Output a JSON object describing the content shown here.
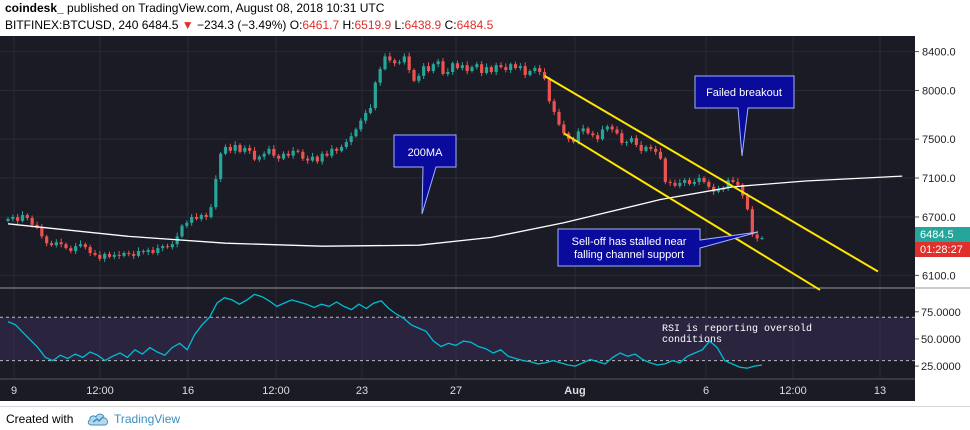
{
  "header": {
    "brand": "coindesk_",
    "published": "published on TradingView.com, August 08, 2018 10:31 UTC",
    "symbol": "BITFINEX:BTCUSD, 240",
    "last": "6484.5",
    "arrow": "▼",
    "change": "−234.3 (−3.49%)",
    "o_label": "O:",
    "o_value": "6461.7",
    "h_label": "H:",
    "h_value": "6519.9",
    "l_label": "L:",
    "l_value": "6438.9",
    "c_label": "C:",
    "c_value": "6484.5"
  },
  "footer": {
    "created_with": "Created with",
    "tradingview": "TradingView",
    "logo_icon": "tradingview-cloud-icon"
  },
  "colors": {
    "up": "#26a69a",
    "down": "#ef5350",
    "ma": "#ffffff",
    "channel": "#ffe500",
    "rsi": "#00bcd4",
    "callout": "#0a0a9c",
    "background": "#1a1b24"
  },
  "chart_data": [
    {
      "type": "candlestick",
      "title": "",
      "y_axis": {
        "ticks": [
          8400,
          8000,
          7500,
          7100,
          6700,
          6100
        ],
        "labels": [
          "8400.0",
          "8000.0",
          "7500.0",
          "7100.0",
          "6700.0",
          "6100.0"
        ],
        "range": [
          5970,
          8560
        ]
      },
      "x_axis": {
        "labels": [
          "9",
          "12:00",
          "16",
          "12:00",
          "23",
          "27",
          "Aug",
          "6",
          "12:00",
          "13"
        ]
      },
      "price_label": "6484.5",
      "countdown_label": "01:28:27",
      "series": [
        {
          "name": "BTCUSD",
          "close": [
            6680,
            6700,
            6660,
            6720,
            6690,
            6620,
            6590,
            6500,
            6430,
            6410,
            6440,
            6420,
            6380,
            6350,
            6400,
            6420,
            6390,
            6330,
            6310,
            6270,
            6320,
            6290,
            6310,
            6300,
            6330,
            6320,
            6300,
            6350,
            6340,
            6360,
            6330,
            6380,
            6400,
            6390,
            6420,
            6500,
            6610,
            6640,
            6700,
            6680,
            6720,
            6700,
            6800,
            7090,
            7350,
            7420,
            7380,
            7440,
            7370,
            7410,
            7380,
            7290,
            7320,
            7350,
            7400,
            7330,
            7300,
            7350,
            7330,
            7380,
            7370,
            7300,
            7280,
            7320,
            7270,
            7350,
            7330,
            7400,
            7380,
            7420,
            7470,
            7530,
            7600,
            7690,
            7770,
            7820,
            8080,
            8220,
            8350,
            8310,
            8280,
            8290,
            8350,
            8210,
            8100,
            8150,
            8250,
            8200,
            8270,
            8300,
            8170,
            8190,
            8280,
            8230,
            8260,
            8200,
            8240,
            8270,
            8180,
            8240,
            8190,
            8260,
            8240,
            8210,
            8270,
            8230,
            8250,
            8160,
            8200,
            8230,
            8190,
            8120,
            7890,
            7780,
            7650,
            7560,
            7500,
            7470,
            7580,
            7610,
            7560,
            7540,
            7500,
            7600,
            7630,
            7600,
            7560,
            7460,
            7470,
            7510,
            7440,
            7380,
            7420,
            7400,
            7370,
            7300,
            7060,
            7050,
            7020,
            7050,
            7080,
            7040,
            7060,
            7100,
            7060,
            7010,
            6960,
            6980,
            7000,
            7080,
            7060,
            7030,
            6920,
            6780,
            6520,
            6480,
            6484.5
          ],
          "ohlc_last": {
            "open": 6461.7,
            "high": 6519.9,
            "low": 6438.9,
            "close": 6484.5
          }
        },
        {
          "name": "200MA",
          "points": [
            [
              0,
              6630
            ],
            [
              25,
              6500
            ],
            [
              45,
              6430
            ],
            [
              65,
              6400
            ],
            [
              85,
              6410
            ],
            [
              100,
              6490
            ],
            [
              115,
              6640
            ],
            [
              135,
              6880
            ],
            [
              150,
              7010
            ],
            [
              165,
              7070
            ],
            [
              185,
              7120
            ]
          ]
        }
      ],
      "channel_lines": [
        {
          "from": [
            111,
            8150
          ],
          "to": [
            180,
            6140
          ]
        },
        {
          "from": [
            115,
            7560
          ],
          "to": [
            168,
            5950
          ]
        }
      ],
      "annotations": [
        {
          "text": "200MA"
        },
        {
          "text": "Failed breakout"
        },
        {
          "text_lines": [
            "Sell-off has stalled near",
            "falling channel support"
          ]
        }
      ]
    },
    {
      "type": "line",
      "title": "",
      "y_axis": {
        "ticks": [
          75,
          50,
          25
        ],
        "labels": [
          "75.0000",
          "50.0000",
          "25.0000"
        ],
        "range": [
          14,
          96
        ]
      },
      "overbought": 70,
      "oversold": 30,
      "series": [
        {
          "name": "RSI",
          "values": [
            66,
            63,
            56,
            49,
            42,
            33,
            30,
            35,
            32,
            36,
            33,
            38,
            35,
            30,
            34,
            37,
            33,
            40,
            36,
            42,
            38,
            35,
            42,
            46,
            40,
            54,
            63,
            70,
            83,
            88,
            86,
            82,
            86,
            91,
            89,
            85,
            80,
            83,
            86,
            84,
            82,
            79,
            82,
            80,
            84,
            80,
            77,
            82,
            78,
            83,
            85,
            78,
            73,
            69,
            63,
            60,
            57,
            48,
            43,
            46,
            44,
            48,
            47,
            43,
            41,
            37,
            40,
            34,
            32,
            30,
            29,
            27,
            28,
            30,
            28,
            26,
            25,
            28,
            31,
            29,
            27,
            33,
            37,
            34,
            36,
            31,
            28,
            26,
            27,
            30,
            28,
            34,
            37,
            40,
            48,
            42,
            30,
            27,
            24,
            23,
            25,
            26
          ]
        }
      ],
      "annotations": [
        {
          "text_lines": [
            "RSI is reporting oversold",
            "conditions"
          ]
        }
      ]
    }
  ]
}
